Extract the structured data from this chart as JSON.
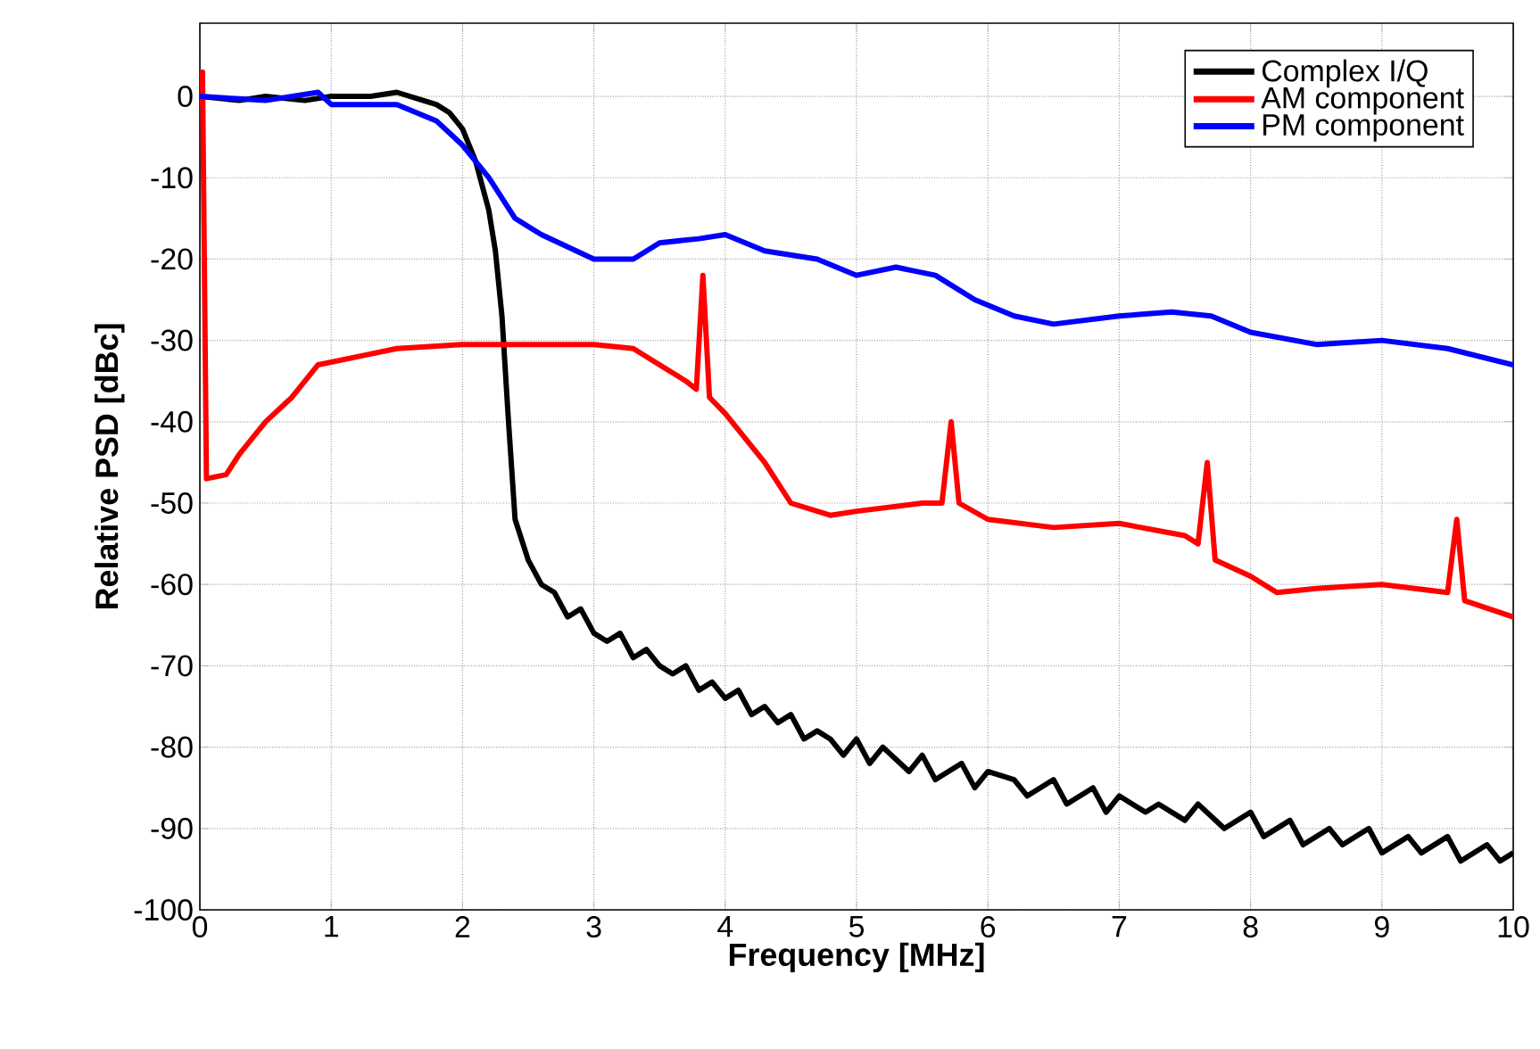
{
  "chart_data": {
    "type": "line",
    "xlabel": "Frequency [MHz]",
    "ylabel": "Relative PSD [dBc]",
    "xlim": [
      0,
      10
    ],
    "ylim": [
      -100,
      9
    ],
    "xticks": [
      0,
      1,
      2,
      3,
      4,
      5,
      6,
      7,
      8,
      9,
      10
    ],
    "yticks": [
      -100,
      -90,
      -80,
      -70,
      -60,
      -50,
      -40,
      -30,
      -20,
      -10,
      0
    ],
    "grid": true,
    "legend": "top right",
    "marker": "none",
    "line_style": "solid",
    "series": [
      {
        "name": "Complex I/Q",
        "color": "#000000",
        "x": [
          0,
          0.3,
          0.5,
          0.8,
          1,
          1.3,
          1.5,
          1.7,
          1.8,
          1.9,
          2.0,
          2.1,
          2.2,
          2.25,
          2.3,
          2.35,
          2.4,
          2.5,
          2.6,
          2.7,
          2.8,
          2.9,
          3.0,
          3.1,
          3.2,
          3.3,
          3.4,
          3.5,
          3.6,
          3.7,
          3.8,
          3.9,
          4.0,
          4.1,
          4.2,
          4.3,
          4.4,
          4.5,
          4.6,
          4.7,
          4.8,
          4.9,
          5.0,
          5.1,
          5.2,
          5.4,
          5.5,
          5.6,
          5.8,
          5.9,
          6.0,
          6.2,
          6.3,
          6.5,
          6.6,
          6.8,
          6.9,
          7.0,
          7.2,
          7.3,
          7.5,
          7.6,
          7.8,
          8.0,
          8.1,
          8.3,
          8.4,
          8.6,
          8.7,
          8.9,
          9.0,
          9.2,
          9.3,
          9.5,
          9.6,
          9.8,
          9.9,
          10
        ],
        "values": [
          0,
          -0.5,
          0,
          -0.5,
          0,
          0,
          0.5,
          -0.5,
          -1,
          -2,
          -4,
          -8,
          -14,
          -19,
          -27,
          -40,
          -52,
          -57,
          -60,
          -61,
          -64,
          -63,
          -66,
          -67,
          -66,
          -69,
          -68,
          -70,
          -71,
          -70,
          -73,
          -72,
          -74,
          -73,
          -76,
          -75,
          -77,
          -76,
          -79,
          -78,
          -79,
          -81,
          -79,
          -82,
          -80,
          -83,
          -81,
          -84,
          -82,
          -85,
          -83,
          -84,
          -86,
          -84,
          -87,
          -85,
          -88,
          -86,
          -88,
          -87,
          -89,
          -87,
          -90,
          -88,
          -91,
          -89,
          -92,
          -90,
          -92,
          -90,
          -93,
          -91,
          -93,
          -91,
          -94,
          -92,
          -94,
          -93
        ]
      },
      {
        "name": "AM component",
        "color": "#ff0000",
        "x": [
          0,
          0.02,
          0.05,
          0.2,
          0.3,
          0.5,
          0.7,
          0.9,
          1.2,
          1.5,
          2,
          2.5,
          3,
          3.3,
          3.5,
          3.7,
          3.78,
          3.83,
          3.88,
          4,
          4.3,
          4.5,
          4.8,
          5,
          5.5,
          5.65,
          5.72,
          5.78,
          6,
          6.5,
          7,
          7.5,
          7.6,
          7.67,
          7.73,
          8,
          8.2,
          8.5,
          9,
          9.5,
          9.57,
          9.63,
          10
        ],
        "values": [
          -1,
          3,
          -47,
          -46.5,
          -44,
          -40,
          -37,
          -33,
          -32,
          -31,
          -30.5,
          -30.5,
          -30.5,
          -31,
          -33,
          -35,
          -36,
          -22,
          -37,
          -39,
          -45,
          -50,
          -51.5,
          -51,
          -50,
          -50,
          -40,
          -50,
          -52,
          -53,
          -52.5,
          -54,
          -55,
          -45,
          -57,
          -59,
          -61,
          -60.5,
          -60,
          -61,
          -52,
          -62,
          -64
        ]
      },
      {
        "name": "PM component",
        "color": "#0000ff",
        "x": [
          0,
          0.5,
          0.9,
          1,
          1.3,
          1.5,
          1.8,
          2.0,
          2.2,
          2.4,
          2.6,
          3,
          3.3,
          3.5,
          3.8,
          4,
          4.3,
          4.7,
          5,
          5.3,
          5.6,
          5.9,
          6.2,
          6.5,
          7,
          7.4,
          7.7,
          8,
          8.5,
          9,
          9.5,
          10
        ],
        "values": [
          0,
          -0.5,
          0.5,
          -1,
          -1,
          -1,
          -3,
          -6,
          -10,
          -15,
          -17,
          -20,
          -20,
          -18,
          -17.5,
          -17,
          -19,
          -20,
          -22,
          -21,
          -22,
          -25,
          -27,
          -28,
          -27,
          -26.5,
          -27,
          -29,
          -30.5,
          -30,
          -31,
          -33
        ]
      }
    ]
  }
}
